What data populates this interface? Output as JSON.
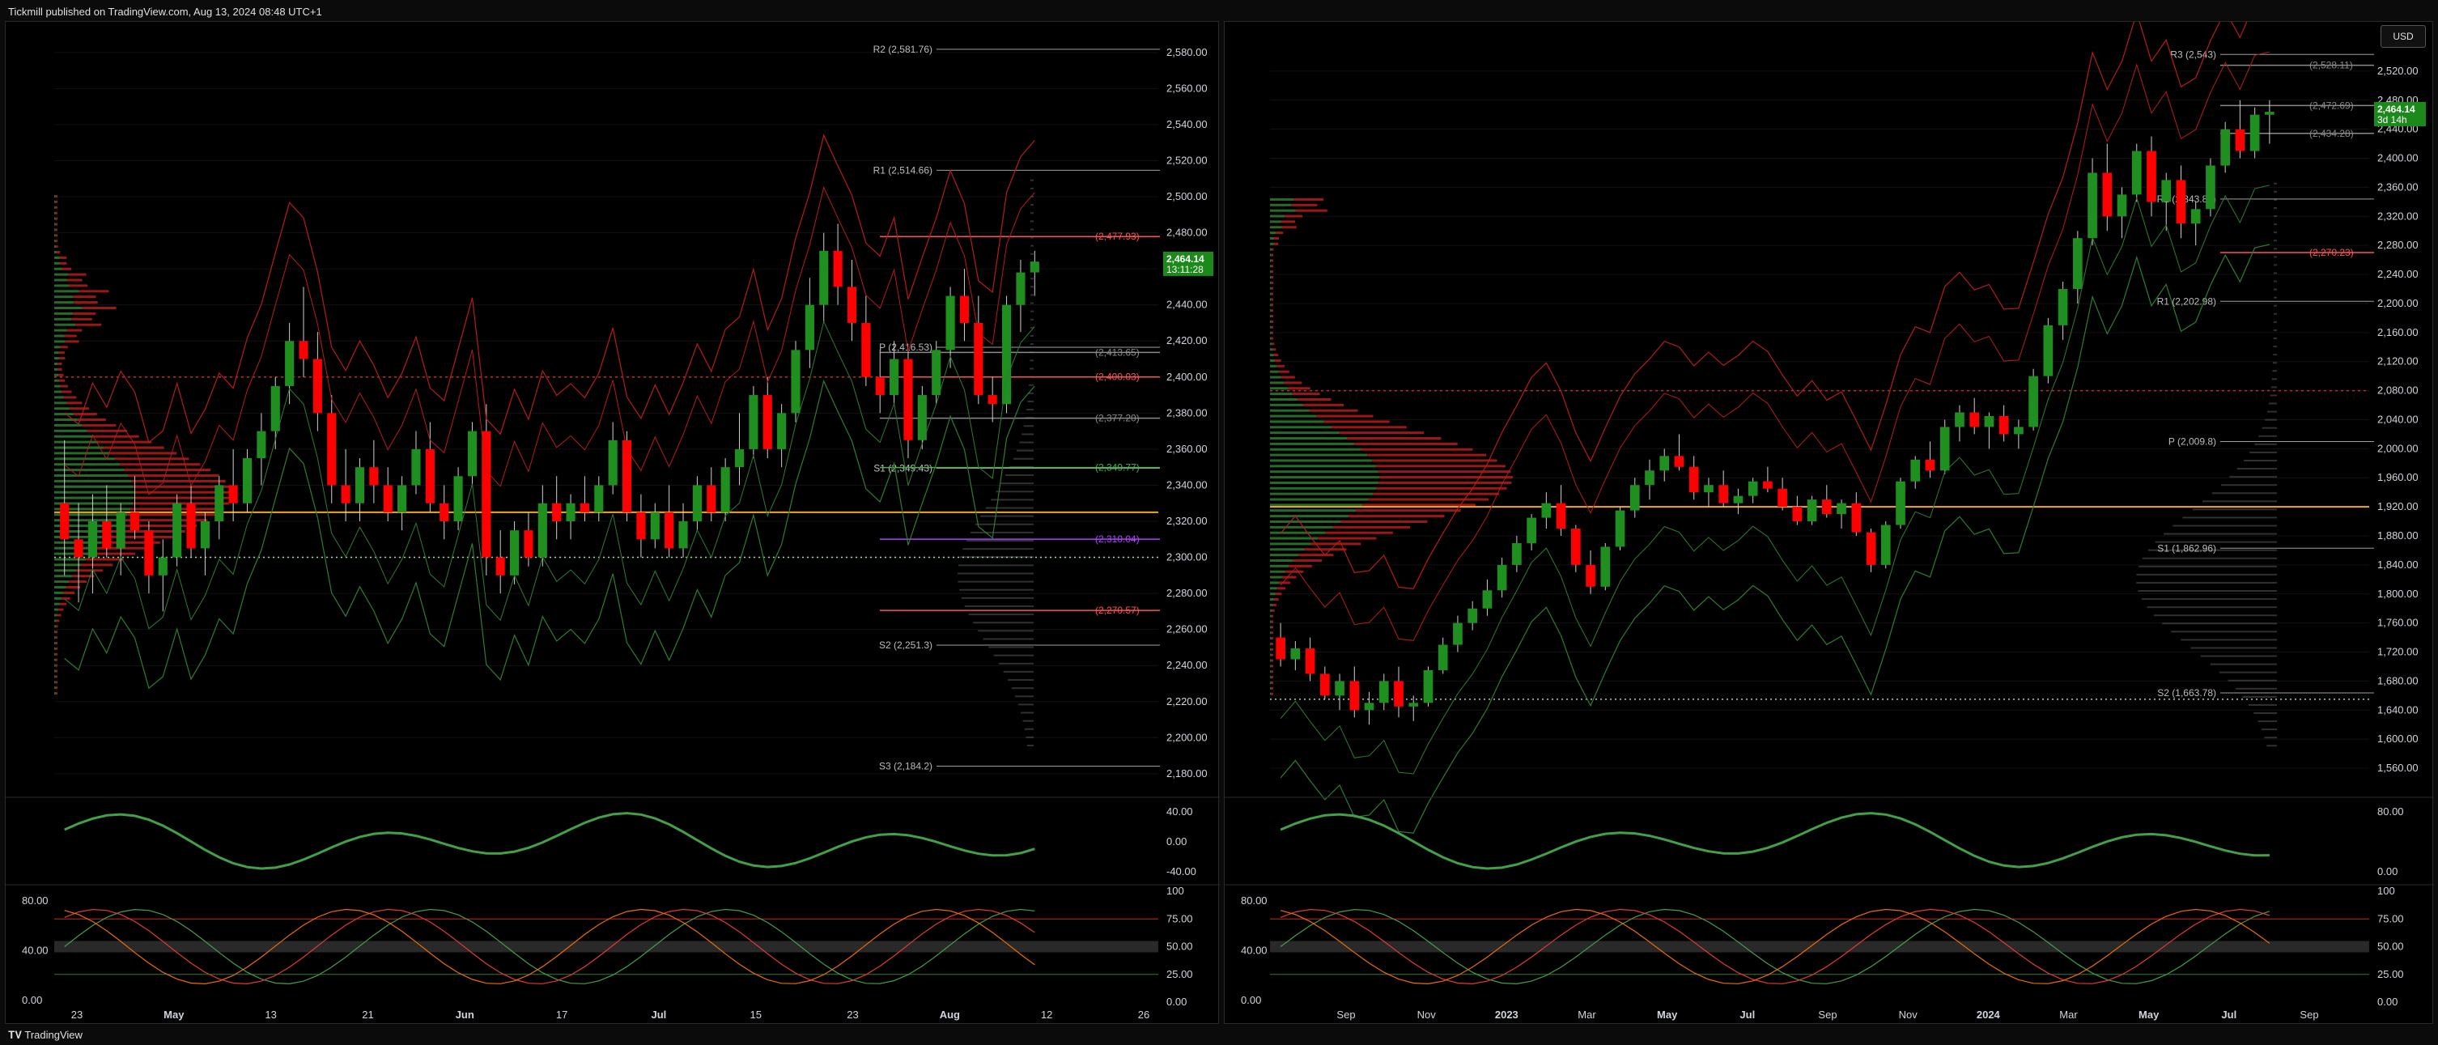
{
  "header": {
    "publisher": "Tickmill published on TradingView.com, Aug 13, 2024 08:48 UTC+1"
  },
  "footer": {
    "brand": "TradingView"
  },
  "colors": {
    "up": "#1f8f1f",
    "down": "#ff0000",
    "pivot": "#c8c8c8",
    "gold": "#f5a623",
    "purple": "#b040ff",
    "red": "#ff4d4d"
  },
  "chart_data": [
    {
      "type": "candlestick",
      "panel": "left",
      "price_axis": {
        "ticks": [
          "2,580.00",
          "2,560.00",
          "2,540.00",
          "2,520.00",
          "2,500.00",
          "2,480.00",
          "2,460.00",
          "2,440.00",
          "2,420.00",
          "2,400.00",
          "2,380.00",
          "2,360.00",
          "2,340.00",
          "2,320.00",
          "2,300.00",
          "2,280.00",
          "2,260.00",
          "2,240.00",
          "2,220.00",
          "2,200.00",
          "2,180.00"
        ],
        "range": [
          2175,
          2588
        ]
      },
      "time_axis": {
        "ticks": [
          "23",
          "May",
          "13",
          "21",
          "Jun",
          "17",
          "Jul",
          "15",
          "23",
          "Aug",
          "12",
          "26"
        ]
      },
      "last_price": {
        "value": "2,464.14",
        "countdown": "13:11:28"
      },
      "pivot_levels": [
        {
          "label": "R2 (2,581.76)",
          "value": 2581.76
        },
        {
          "label": "R1 (2,514.66)",
          "value": 2514.66
        },
        {
          "label": "P (2,416.53)",
          "value": 2416.53
        },
        {
          "label": "S1 (2,349.43)",
          "value": 2349.43
        },
        {
          "label": "S2 (2,251.3)",
          "value": 2251.3
        },
        {
          "label": "S3 (2,184.2)",
          "value": 2184.2
        }
      ],
      "price_labels": [
        {
          "label": "(2,477.93)",
          "value": 2477.93,
          "color": "red"
        },
        {
          "label": "(2,413.65)",
          "value": 2413.65,
          "color": "gray"
        },
        {
          "label": "(2,400.03)",
          "value": 2400.03,
          "color": "red"
        },
        {
          "label": "(2,377.20)",
          "value": 2377.2,
          "color": "gray"
        },
        {
          "label": "(2,349.77)",
          "value": 2349.77,
          "color": "green"
        },
        {
          "label": "(2,310.04)",
          "value": 2310.04,
          "color": "purple"
        },
        {
          "label": "(2,270.57)",
          "value": 2270.57,
          "color": "red"
        }
      ],
      "candles_ohlc": [
        [
          2330,
          2365,
          2290,
          2310
        ],
        [
          2310,
          2330,
          2275,
          2300
        ],
        [
          2300,
          2335,
          2280,
          2320
        ],
        [
          2320,
          2340,
          2300,
          2305
        ],
        [
          2305,
          2330,
          2290,
          2325
        ],
        [
          2325,
          2345,
          2310,
          2315
        ],
        [
          2315,
          2320,
          2280,
          2290
        ],
        [
          2290,
          2310,
          2270,
          2300
        ],
        [
          2300,
          2335,
          2295,
          2330
        ],
        [
          2330,
          2340,
          2300,
          2305
        ],
        [
          2305,
          2325,
          2290,
          2320
        ],
        [
          2320,
          2345,
          2310,
          2340
        ],
        [
          2340,
          2360,
          2320,
          2330
        ],
        [
          2330,
          2360,
          2325,
          2355
        ],
        [
          2355,
          2380,
          2340,
          2370
        ],
        [
          2370,
          2400,
          2360,
          2395
        ],
        [
          2395,
          2430,
          2385,
          2420
        ],
        [
          2420,
          2450,
          2400,
          2410
        ],
        [
          2410,
          2425,
          2370,
          2380
        ],
        [
          2380,
          2390,
          2330,
          2340
        ],
        [
          2340,
          2360,
          2320,
          2330
        ],
        [
          2330,
          2355,
          2320,
          2350
        ],
        [
          2350,
          2365,
          2330,
          2340
        ],
        [
          2340,
          2350,
          2320,
          2325
        ],
        [
          2325,
          2345,
          2315,
          2340
        ],
        [
          2340,
          2370,
          2335,
          2360
        ],
        [
          2360,
          2375,
          2325,
          2330
        ],
        [
          2330,
          2340,
          2310,
          2320
        ],
        [
          2320,
          2350,
          2315,
          2345
        ],
        [
          2345,
          2375,
          2340,
          2370
        ],
        [
          2370,
          2385,
          2290,
          2300
        ],
        [
          2300,
          2315,
          2280,
          2290
        ],
        [
          2290,
          2320,
          2285,
          2315
        ],
        [
          2315,
          2325,
          2295,
          2300
        ],
        [
          2300,
          2340,
          2295,
          2330
        ],
        [
          2330,
          2345,
          2310,
          2320
        ],
        [
          2320,
          2335,
          2310,
          2330
        ],
        [
          2330,
          2345,
          2320,
          2325
        ],
        [
          2325,
          2345,
          2320,
          2340
        ],
        [
          2340,
          2375,
          2335,
          2365
        ],
        [
          2365,
          2370,
          2320,
          2325
        ],
        [
          2325,
          2335,
          2300,
          2310
        ],
        [
          2310,
          2330,
          2305,
          2325
        ],
        [
          2325,
          2340,
          2300,
          2305
        ],
        [
          2305,
          2330,
          2300,
          2320
        ],
        [
          2320,
          2345,
          2315,
          2340
        ],
        [
          2340,
          2350,
          2320,
          2325
        ],
        [
          2325,
          2355,
          2320,
          2350
        ],
        [
          2350,
          2380,
          2340,
          2360
        ],
        [
          2360,
          2395,
          2355,
          2390
        ],
        [
          2390,
          2400,
          2355,
          2360
        ],
        [
          2360,
          2385,
          2350,
          2380
        ],
        [
          2380,
          2420,
          2375,
          2415
        ],
        [
          2415,
          2455,
          2405,
          2440
        ],
        [
          2440,
          2480,
          2430,
          2470
        ],
        [
          2470,
          2485,
          2440,
          2450
        ],
        [
          2450,
          2465,
          2420,
          2430
        ],
        [
          2430,
          2445,
          2395,
          2400
        ],
        [
          2400,
          2415,
          2380,
          2390
        ],
        [
          2390,
          2420,
          2385,
          2410
        ],
        [
          2410,
          2415,
          2355,
          2365
        ],
        [
          2365,
          2395,
          2360,
          2390
        ],
        [
          2390,
          2420,
          2385,
          2415
        ],
        [
          2415,
          2450,
          2405,
          2445
        ],
        [
          2445,
          2460,
          2420,
          2430
        ],
        [
          2430,
          2445,
          2385,
          2390
        ],
        [
          2390,
          2400,
          2375,
          2385
        ],
        [
          2385,
          2445,
          2380,
          2440
        ],
        [
          2440,
          2465,
          2425,
          2458
        ],
        [
          2458,
          2470,
          2445,
          2464
        ]
      ],
      "oscillator_1": {
        "ticks": [
          "40.00",
          "0.00",
          "-40.00"
        ]
      },
      "oscillator_2": {
        "ticks": [
          "100",
          "75.00",
          "50.00",
          "25.00",
          "0.00"
        ],
        "left_ticks": [
          "80.00",
          "40.00",
          "0.00"
        ]
      }
    },
    {
      "type": "candlestick",
      "panel": "right",
      "currency": "USD",
      "price_axis": {
        "ticks": [
          "2,520.00",
          "2,480.00",
          "2,440.00",
          "2,400.00",
          "2,360.00",
          "2,320.00",
          "2,280.00",
          "2,240.00",
          "2,200.00",
          "2,160.00",
          "2,120.00",
          "2,080.00",
          "2,040.00",
          "2,000.00",
          "1,960.00",
          "1,920.00",
          "1,880.00",
          "1,840.00",
          "1,800.00",
          "1,760.00",
          "1,720.00",
          "1,680.00",
          "1,640.00",
          "1,600.00",
          "1,560.00"
        ],
        "range": [
          1540,
          2560
        ]
      },
      "time_axis": {
        "ticks": [
          "Sep",
          "Nov",
          "2023",
          "Mar",
          "May",
          "Jul",
          "Sep",
          "Nov",
          "2024",
          "Mar",
          "May",
          "Jul",
          "Sep"
        ]
      },
      "last_price": {
        "value": "2,464.14",
        "countdown": "3d 14h"
      },
      "pivot_levels": [
        {
          "label": "R3 (2,543)",
          "value": 2543
        },
        {
          "label": "R2 (2,343.82)",
          "value": 2343.82
        },
        {
          "label": "R1 (2,202.98)",
          "value": 2202.98
        },
        {
          "label": "P (2,009.8)",
          "value": 2009.8
        },
        {
          "label": "S1 (1,862.96)",
          "value": 1862.96
        },
        {
          "label": "S2 (1,663.78)",
          "value": 1663.78
        }
      ],
      "price_labels": [
        {
          "label": "(2,528.11)",
          "value": 2528.11,
          "color": "gray"
        },
        {
          "label": "(2,472.69)",
          "value": 2472.69,
          "color": "gray"
        },
        {
          "label": "(2,434.28)",
          "value": 2434.28,
          "color": "gray"
        },
        {
          "label": "(2,270.23)",
          "value": 2270.23,
          "color": "red"
        }
      ],
      "candles_ohlc": [
        [
          1740,
          1760,
          1700,
          1710
        ],
        [
          1710,
          1735,
          1695,
          1725
        ],
        [
          1725,
          1740,
          1680,
          1690
        ],
        [
          1690,
          1700,
          1655,
          1660
        ],
        [
          1660,
          1690,
          1640,
          1680
        ],
        [
          1680,
          1700,
          1630,
          1640
        ],
        [
          1640,
          1665,
          1620,
          1650
        ],
        [
          1650,
          1690,
          1640,
          1680
        ],
        [
          1680,
          1700,
          1630,
          1645
        ],
        [
          1645,
          1660,
          1625,
          1650
        ],
        [
          1650,
          1700,
          1645,
          1695
        ],
        [
          1695,
          1740,
          1690,
          1730
        ],
        [
          1730,
          1770,
          1720,
          1760
        ],
        [
          1760,
          1790,
          1750,
          1780
        ],
        [
          1780,
          1820,
          1770,
          1805
        ],
        [
          1805,
          1850,
          1795,
          1840
        ],
        [
          1840,
          1880,
          1830,
          1870
        ],
        [
          1870,
          1910,
          1860,
          1905
        ],
        [
          1905,
          1940,
          1890,
          1925
        ],
        [
          1925,
          1950,
          1880,
          1890
        ],
        [
          1890,
          1895,
          1830,
          1840
        ],
        [
          1840,
          1860,
          1800,
          1810
        ],
        [
          1810,
          1870,
          1805,
          1865
        ],
        [
          1865,
          1920,
          1860,
          1915
        ],
        [
          1915,
          1960,
          1905,
          1950
        ],
        [
          1950,
          1985,
          1930,
          1970
        ],
        [
          1970,
          2000,
          1955,
          1990
        ],
        [
          1990,
          2020,
          1970,
          1975
        ],
        [
          1975,
          1990,
          1930,
          1940
        ],
        [
          1940,
          1960,
          1920,
          1950
        ],
        [
          1950,
          1970,
          1920,
          1925
        ],
        [
          1925,
          1945,
          1910,
          1935
        ],
        [
          1935,
          1960,
          1925,
          1955
        ],
        [
          1955,
          1975,
          1940,
          1945
        ],
        [
          1945,
          1960,
          1915,
          1920
        ],
        [
          1920,
          1935,
          1895,
          1900
        ],
        [
          1900,
          1935,
          1895,
          1930
        ],
        [
          1930,
          1950,
          1905,
          1910
        ],
        [
          1910,
          1930,
          1890,
          1925
        ],
        [
          1925,
          1940,
          1880,
          1885
        ],
        [
          1885,
          1890,
          1830,
          1840
        ],
        [
          1840,
          1900,
          1835,
          1895
        ],
        [
          1895,
          1960,
          1890,
          1955
        ],
        [
          1955,
          1990,
          1945,
          1985
        ],
        [
          1985,
          2010,
          1960,
          1970
        ],
        [
          1970,
          2040,
          1965,
          2030
        ],
        [
          2030,
          2060,
          2010,
          2050
        ],
        [
          2050,
          2070,
          2020,
          2030
        ],
        [
          2030,
          2050,
          2000,
          2045
        ],
        [
          2045,
          2060,
          2010,
          2020
        ],
        [
          2020,
          2040,
          2000,
          2030
        ],
        [
          2030,
          2110,
          2025,
          2100
        ],
        [
          2100,
          2180,
          2090,
          2170
        ],
        [
          2170,
          2230,
          2150,
          2220
        ],
        [
          2220,
          2300,
          2200,
          2290
        ],
        [
          2290,
          2400,
          2280,
          2380
        ],
        [
          2380,
          2420,
          2300,
          2320
        ],
        [
          2320,
          2360,
          2290,
          2350
        ],
        [
          2350,
          2420,
          2340,
          2410
        ],
        [
          2410,
          2430,
          2320,
          2340
        ],
        [
          2340,
          2380,
          2300,
          2370
        ],
        [
          2370,
          2390,
          2290,
          2310
        ],
        [
          2310,
          2340,
          2280,
          2330
        ],
        [
          2330,
          2400,
          2320,
          2390
        ],
        [
          2390,
          2450,
          2380,
          2440
        ],
        [
          2440,
          2480,
          2400,
          2410
        ],
        [
          2410,
          2470,
          2400,
          2460
        ],
        [
          2460,
          2480,
          2420,
          2464
        ]
      ],
      "oscillator_1": {
        "ticks": [
          "80.00",
          "0.00"
        ]
      },
      "oscillator_2": {
        "ticks": [
          "100",
          "75.00",
          "50.00",
          "25.00",
          "0.00"
        ],
        "left_ticks": [
          "80.00",
          "40.00",
          "0.00"
        ]
      }
    }
  ]
}
